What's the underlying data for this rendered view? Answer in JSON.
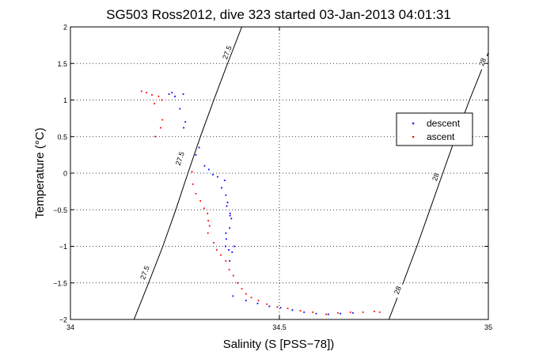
{
  "chart_data": {
    "type": "scatter",
    "title": "SG503 Ross2012, dive 323 started 03-Jan-2013 04:01:31",
    "xlabel": "Salinity (S [PSS−78])",
    "ylabel": "Temperature (°C)",
    "xlim": [
      34,
      35
    ],
    "ylim": [
      -2,
      2
    ],
    "x_ticks": [
      34,
      34.5,
      35
    ],
    "x_tick_labels": [
      "34",
      "34.5",
      "35"
    ],
    "y_ticks": [
      -2,
      -1.5,
      -1,
      -0.5,
      0,
      0.5,
      1,
      1.5,
      2
    ],
    "y_tick_labels": [
      "−2",
      "−1.5",
      "−1",
      "−0.5",
      "0",
      "0.5",
      "1",
      "1.5",
      "2"
    ],
    "grid": true,
    "legend_position": "right",
    "series": [
      {
        "name": "descent",
        "color": "#0000ff",
        "points": [
          [
            34.236,
            1.08
          ],
          [
            34.243,
            1.1
          ],
          [
            34.25,
            1.05
          ],
          [
            34.27,
            1.08
          ],
          [
            34.262,
            0.88
          ],
          [
            34.275,
            0.7
          ],
          [
            34.271,
            0.62
          ],
          [
            34.308,
            0.35
          ],
          [
            34.3,
            0.25
          ],
          [
            34.321,
            0.1
          ],
          [
            34.331,
            0.05
          ],
          [
            34.341,
            -0.02
          ],
          [
            34.352,
            -0.05
          ],
          [
            34.362,
            -0.2
          ],
          [
            34.372,
            -0.3
          ],
          [
            34.374,
            -0.45
          ],
          [
            34.382,
            -0.58
          ],
          [
            34.381,
            -0.75
          ],
          [
            34.372,
            -0.82
          ],
          [
            34.373,
            -0.9
          ],
          [
            34.371,
            -1.0
          ],
          [
            34.379,
            -1.05
          ],
          [
            34.387,
            -1.08
          ],
          [
            34.381,
            -1.2
          ],
          [
            34.392,
            -1.0
          ],
          [
            34.382,
            -0.55
          ],
          [
            34.385,
            -0.62
          ],
          [
            34.376,
            -0.4
          ],
          [
            34.369,
            -0.1
          ],
          [
            34.389,
            -1.68
          ],
          [
            34.42,
            -1.74
          ],
          [
            34.448,
            -1.78
          ],
          [
            34.476,
            -1.82
          ],
          [
            34.503,
            -1.84
          ],
          [
            34.531,
            -1.87
          ],
          [
            34.559,
            -1.9
          ],
          [
            34.588,
            -1.92
          ],
          [
            34.617,
            -1.93
          ],
          [
            34.646,
            -1.92
          ],
          [
            34.676,
            -1.91
          ]
        ]
      },
      {
        "name": "ascent",
        "color": "#ff0000",
        "points": [
          [
            34.17,
            1.12
          ],
          [
            34.182,
            1.1
          ],
          [
            34.195,
            1.07
          ],
          [
            34.211,
            1.05
          ],
          [
            34.219,
            1.0
          ],
          [
            34.201,
            0.95
          ],
          [
            34.22,
            0.73
          ],
          [
            34.216,
            0.62
          ],
          [
            34.203,
            0.5
          ],
          [
            34.291,
            0.02
          ],
          [
            34.293,
            -0.15
          ],
          [
            34.3,
            -0.28
          ],
          [
            34.311,
            -0.38
          ],
          [
            34.32,
            -0.48
          ],
          [
            34.328,
            -0.55
          ],
          [
            34.33,
            -0.65
          ],
          [
            34.333,
            -0.72
          ],
          [
            34.329,
            -0.82
          ],
          [
            34.343,
            -0.95
          ],
          [
            34.35,
            -1.05
          ],
          [
            34.36,
            -1.12
          ],
          [
            34.372,
            -1.2
          ],
          [
            34.38,
            -1.32
          ],
          [
            34.39,
            -1.4
          ],
          [
            34.4,
            -1.5
          ],
          [
            34.41,
            -1.58
          ],
          [
            34.42,
            -1.65
          ],
          [
            34.433,
            -1.7
          ],
          [
            34.45,
            -1.74
          ],
          [
            34.47,
            -1.79
          ],
          [
            34.495,
            -1.83
          ],
          [
            34.52,
            -1.85
          ],
          [
            34.55,
            -1.88
          ],
          [
            34.58,
            -1.9
          ],
          [
            34.612,
            -1.93
          ],
          [
            34.64,
            -1.91
          ],
          [
            34.67,
            -1.9
          ],
          [
            34.7,
            -1.9
          ],
          [
            34.727,
            -1.89
          ],
          [
            34.74,
            -1.9
          ]
        ]
      }
    ],
    "contours": [
      {
        "label": "27.5",
        "color": "#000000",
        "points": [
          [
            34.152,
            -2.0
          ],
          [
            34.187,
            -1.5
          ],
          [
            34.221,
            -1.0
          ],
          [
            34.252,
            -0.5
          ],
          [
            34.281,
            0.0
          ],
          [
            34.311,
            0.5
          ],
          [
            34.343,
            1.0
          ],
          [
            34.376,
            1.5
          ],
          [
            34.41,
            2.0
          ]
        ],
        "label_positions": [
          [
            34.178,
            -1.36
          ],
          [
            34.262,
            0.2
          ],
          [
            34.375,
            1.65
          ]
        ]
      },
      {
        "label": "28",
        "color": "#000000",
        "points": [
          [
            34.762,
            -2.0
          ],
          [
            34.796,
            -1.5
          ],
          [
            34.829,
            -1.0
          ],
          [
            34.86,
            -0.5
          ],
          [
            34.891,
            0.0
          ],
          [
            34.922,
            0.5
          ],
          [
            34.955,
            1.0
          ],
          [
            34.99,
            1.5
          ],
          [
            35.0,
            1.65
          ]
        ],
        "label_positions": [
          [
            34.783,
            -1.6
          ],
          [
            34.874,
            -0.05
          ],
          [
            34.986,
            1.52
          ]
        ]
      }
    ]
  }
}
